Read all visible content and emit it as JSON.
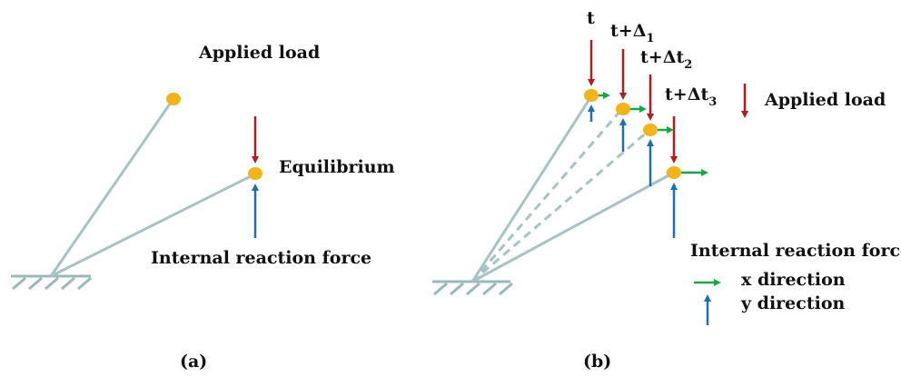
{
  "colors": {
    "bar": "#a7c3c4",
    "node": "#f0b41c",
    "applied_load": "#b01c22",
    "reaction_y": "#1a6fb5",
    "reaction_x": "#1fa34a",
    "ground": "#9bb8ba",
    "text": "#111111"
  },
  "panel_a": {
    "caption": "(a)",
    "applied_load": "Applied load",
    "equilibrium": "Equilibrium",
    "internal_force": "Internal reaction force"
  },
  "panel_b": {
    "caption": "(b)",
    "time_labels": {
      "t0": "t",
      "t1_prefix": "t+Δ",
      "t1_sub": "1",
      "t2_prefix": "t+Δt",
      "t2_sub": "2",
      "t3_prefix": "t+Δt",
      "t3_sub": "3"
    },
    "applied_load": "Applied load",
    "internal_force": "Internal reaction force",
    "x_direction": "x direction",
    "y_direction": "y direction"
  }
}
